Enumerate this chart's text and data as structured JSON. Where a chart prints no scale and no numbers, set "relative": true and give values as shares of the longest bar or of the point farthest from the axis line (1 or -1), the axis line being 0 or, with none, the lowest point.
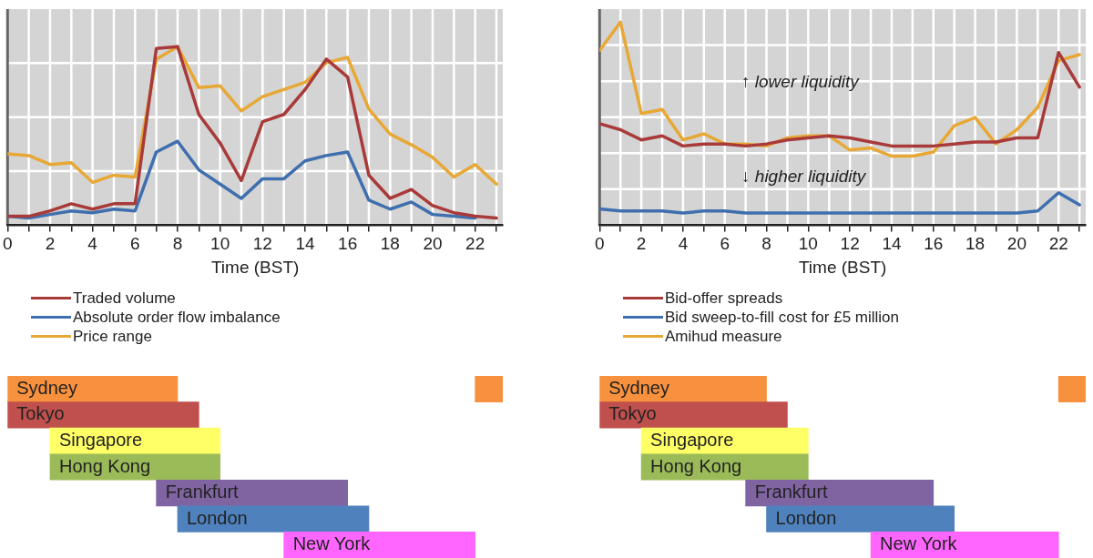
{
  "chart_data": [
    {
      "type": "line",
      "xlabel": "Time (BST)",
      "relative": true,
      "x": [
        0,
        1,
        2,
        3,
        4,
        5,
        6,
        7,
        8,
        9,
        10,
        11,
        12,
        13,
        14,
        15,
        16,
        17,
        18,
        19,
        20,
        21,
        22,
        23
      ],
      "xlim": [
        0,
        23.3
      ],
      "xticks": [
        0,
        {
          "value": 1,
          "label": null
        },
        2,
        {
          "value": 3,
          "label": null
        },
        4,
        {
          "value": 5,
          "label": null
        },
        6,
        {
          "value": 7,
          "label": null
        },
        8,
        {
          "value": 9,
          "label": null
        },
        10,
        {
          "value": 11,
          "label": null
        },
        12,
        {
          "value": 13,
          "label": null
        },
        14,
        {
          "value": 15,
          "label": null
        },
        16,
        {
          "value": 17,
          "label": null
        },
        18,
        {
          "value": 19,
          "label": null
        },
        20,
        {
          "value": 21,
          "label": null
        },
        22,
        {
          "value": 23,
          "label": null
        }
      ],
      "grid": true,
      "legend": "bottom",
      "marker": "none",
      "line_style": "solid",
      "series": [
        {
          "name": "Traded volume",
          "color": "#a93a3a",
          "values": [
            0.05,
            0.05,
            0.08,
            0.12,
            0.09,
            0.12,
            0.12,
            0.99,
            1.0,
            0.62,
            0.46,
            0.25,
            0.58,
            0.62,
            0.76,
            0.93,
            0.83,
            0.28,
            0.15,
            0.2,
            0.11,
            0.07,
            0.05,
            0.04
          ]
        },
        {
          "name": "Absolute order flow imbalance",
          "color": "#3f6fae",
          "values": [
            0.05,
            0.04,
            0.06,
            0.08,
            0.07,
            0.09,
            0.08,
            0.41,
            0.47,
            0.31,
            0.23,
            0.15,
            0.26,
            0.26,
            0.36,
            0.39,
            0.41,
            0.14,
            0.09,
            0.13,
            0.06,
            0.05,
            0.04,
            null
          ]
        },
        {
          "name": "Price range",
          "color": "#e8a835",
          "values": [
            0.4,
            0.39,
            0.34,
            0.35,
            0.24,
            0.28,
            0.27,
            0.93,
            1.0,
            0.77,
            0.78,
            0.64,
            0.72,
            0.76,
            0.8,
            0.91,
            0.94,
            0.65,
            0.51,
            0.45,
            0.38,
            0.27,
            0.34,
            0.23
          ]
        }
      ]
    },
    {
      "type": "bar",
      "orientation": "horizontal",
      "categories": [
        "Sydney",
        "Tokyo",
        "Singapore",
        "Hong Kong",
        "Frankfurt",
        "London",
        "New York"
      ],
      "xlim": [
        0,
        23.3
      ],
      "tick_labels": "y",
      "series": [
        {
          "colors": [
            "#f7913d",
            "#c0504d",
            "#ffff66",
            "#9bbb59",
            "#8064a2",
            "#4f81bd",
            "#ff66ff"
          ],
          "base": [
            0,
            0,
            2,
            2,
            7,
            8,
            13
          ],
          "values": [
            8,
            9,
            8,
            8,
            9,
            9,
            9
          ]
        },
        {
          "colors": [
            "#f7913d",
            null,
            null,
            null,
            null,
            null,
            null
          ],
          "base": [
            22,
            null,
            null,
            null,
            null,
            null,
            null
          ],
          "values": [
            1.3,
            null,
            null,
            null,
            null,
            null,
            null
          ]
        }
      ]
    },
    {
      "type": "line",
      "xlabel": "Time (BST)",
      "relative": true,
      "annotations": [
        "↑ lower liquidity",
        "↓ higher liquidity"
      ],
      "x": [
        0,
        1,
        2,
        3,
        4,
        5,
        6,
        7,
        8,
        9,
        10,
        11,
        12,
        13,
        14,
        15,
        16,
        17,
        18,
        19,
        20,
        21,
        22,
        23
      ],
      "xlim": [
        0,
        23.3
      ],
      "xticks": [
        0,
        {
          "value": 1,
          "label": null
        },
        2,
        {
          "value": 3,
          "label": null
        },
        4,
        {
          "value": 5,
          "label": null
        },
        6,
        {
          "value": 7,
          "label": null
        },
        8,
        {
          "value": 9,
          "label": null
        },
        10,
        {
          "value": 11,
          "label": null
        },
        12,
        {
          "value": 13,
          "label": null
        },
        14,
        {
          "value": 15,
          "label": null
        },
        16,
        {
          "value": 17,
          "label": null
        },
        18,
        {
          "value": 19,
          "label": null
        },
        20,
        {
          "value": 21,
          "label": null
        },
        22,
        {
          "value": 23,
          "label": null
        }
      ],
      "grid": true,
      "legend": "bottom",
      "marker": "none",
      "line_style": "solid",
      "series": [
        {
          "name": "Bid-offer spreads",
          "color": "#a93a3a",
          "values": [
            0.5,
            0.47,
            0.42,
            0.44,
            0.39,
            0.4,
            0.4,
            0.39,
            0.4,
            0.42,
            0.43,
            0.44,
            0.43,
            0.41,
            0.39,
            0.39,
            0.39,
            0.4,
            0.41,
            0.41,
            0.43,
            0.43,
            0.85,
            0.68
          ]
        },
        {
          "name": "Bid sweep-to-fill cost for £5 million",
          "color": "#3f6fae",
          "values": [
            0.08,
            0.07,
            0.07,
            0.07,
            0.06,
            0.07,
            0.07,
            0.06,
            0.06,
            0.06,
            0.06,
            0.06,
            0.06,
            0.06,
            0.06,
            0.06,
            0.06,
            0.06,
            0.06,
            0.06,
            0.06,
            0.07,
            0.16,
            0.1
          ]
        },
        {
          "name": "Amihud measure",
          "color": "#e8a835",
          "values": [
            0.86,
            1.0,
            0.55,
            0.57,
            0.42,
            0.45,
            0.4,
            0.4,
            0.39,
            0.43,
            0.44,
            0.44,
            0.37,
            0.38,
            0.34,
            0.34,
            0.36,
            0.49,
            0.53,
            0.4,
            0.47,
            0.58,
            0.81,
            0.84
          ]
        }
      ]
    },
    {
      "type": "bar",
      "orientation": "horizontal",
      "categories": [
        "Sydney",
        "Tokyo",
        "Singapore",
        "Hong Kong",
        "Frankfurt",
        "London",
        "New York"
      ],
      "xlim": [
        0,
        23.3
      ],
      "tick_labels": "y",
      "series": [
        {
          "colors": [
            "#f7913d",
            "#c0504d",
            "#ffff66",
            "#9bbb59",
            "#8064a2",
            "#4f81bd",
            "#ff66ff"
          ],
          "base": [
            0,
            0,
            2,
            2,
            7,
            8,
            13
          ],
          "values": [
            8,
            9,
            8,
            8,
            9,
            9,
            9
          ]
        },
        {
          "colors": [
            "#f7913d",
            null,
            null,
            null,
            null,
            null,
            null
          ],
          "base": [
            22,
            null,
            null,
            null,
            null,
            null,
            null
          ],
          "values": [
            1.3,
            null,
            null,
            null,
            null,
            null,
            null
          ]
        }
      ]
    }
  ]
}
